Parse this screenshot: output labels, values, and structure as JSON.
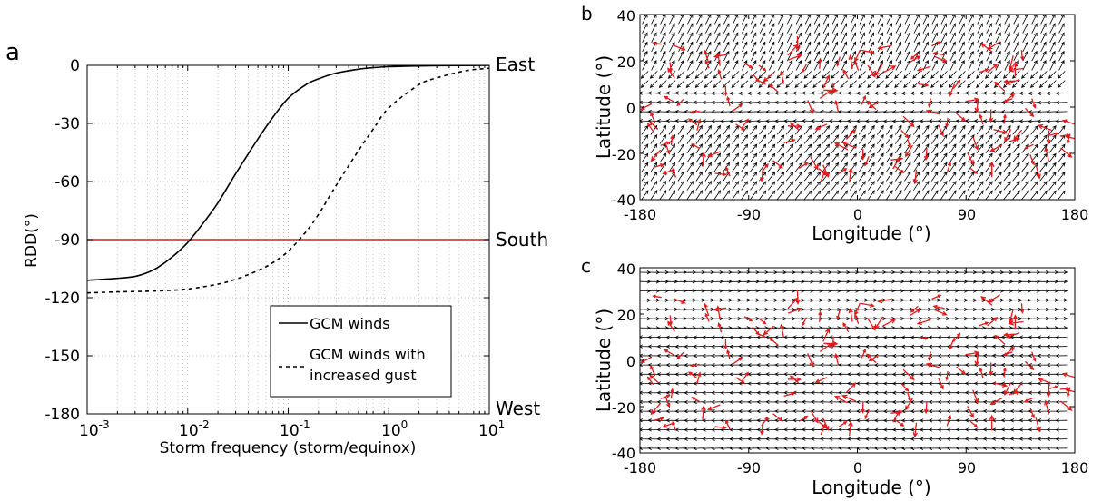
{
  "chart_data": [
    {
      "panel": "a",
      "type": "line",
      "xlabel": "Storm frequency (storm/equinox)",
      "ylabel": "RDD(°)",
      "xscale": "log",
      "xlim": [
        0.001,
        10
      ],
      "ylim": [
        -180,
        0
      ],
      "x_ticks": [
        {
          "value": 0.001,
          "base": "10",
          "exp": "-3"
        },
        {
          "value": 0.01,
          "base": "10",
          "exp": "-2"
        },
        {
          "value": 0.1,
          "base": "10",
          "exp": "-1"
        },
        {
          "value": 1,
          "base": "10",
          "exp": "0"
        },
        {
          "value": 10,
          "base": "10",
          "exp": "1"
        }
      ],
      "y_ticks": [
        0,
        -30,
        -60,
        -90,
        -120,
        -150,
        -180
      ],
      "right_labels": [
        {
          "value": 0,
          "text": "East"
        },
        {
          "value": -90,
          "text": "South"
        },
        {
          "value": -180,
          "text": "West"
        }
      ],
      "grid": true,
      "legend_position": "lower-right",
      "series": [
        {
          "name": "GCM winds",
          "style": "solid",
          "color": "#000000",
          "x": [
            0.001,
            0.002,
            0.003,
            0.004,
            0.005,
            0.007,
            0.01,
            0.015,
            0.02,
            0.03,
            0.05,
            0.07,
            0.1,
            0.15,
            0.2,
            0.3,
            0.5,
            0.7,
            1,
            2,
            5,
            10
          ],
          "y": [
            -111,
            -110,
            -109,
            -107,
            -104.5,
            -99,
            -91.5,
            -80,
            -71,
            -56,
            -38,
            -27,
            -17,
            -10,
            -7,
            -4,
            -2,
            -1.2,
            -0.7,
            -0.3,
            -0.1,
            0
          ]
        },
        {
          "name": "GCM winds with increased gust",
          "style": "dashed",
          "color": "#000000",
          "x": [
            0.001,
            0.002,
            0.005,
            0.01,
            0.02,
            0.03,
            0.05,
            0.07,
            0.1,
            0.15,
            0.2,
            0.3,
            0.5,
            0.7,
            1,
            2,
            3,
            5,
            7,
            10
          ],
          "y": [
            -117.5,
            -117,
            -116.5,
            -115.5,
            -113,
            -110.5,
            -106,
            -102,
            -96,
            -86,
            -77,
            -62,
            -44,
            -33,
            -22,
            -10,
            -6.5,
            -3.5,
            -2.2,
            -1.5
          ]
        },
        {
          "name": "",
          "style": "solid",
          "color": "#e41a1c",
          "x": [
            0.001,
            10
          ],
          "y": [
            -90,
            -90
          ]
        }
      ]
    },
    {
      "panel": "b",
      "type": "quiver",
      "xlabel": "Longitude (°)",
      "ylabel": "Latitude (°)",
      "xlim": [
        -180,
        180
      ],
      "ylim": [
        -40,
        40
      ],
      "x_ticks": [
        -180,
        -90,
        0,
        90,
        180
      ],
      "y_ticks": [
        40,
        20,
        0,
        -20,
        -40
      ],
      "background_field": "wind vectors (black); southern hemisphere and northern mid-latitudes point north-east/south-west, near-equatorial band points west",
      "storm_field": "red arrows scattered between 30°S and 30°N"
    },
    {
      "panel": "c",
      "type": "quiver",
      "xlabel": "Longitude (°)",
      "ylabel": "Latitude (°)",
      "xlim": [
        -180,
        180
      ],
      "ylim": [
        -40,
        40
      ],
      "x_ticks": [
        -180,
        -90,
        0,
        90,
        180
      ],
      "y_ticks": [
        40,
        20,
        0,
        -20,
        -40
      ],
      "background_field": "wind vectors (black); north of 10°N point east, south of 10°N point west",
      "storm_field": "red arrows scattered between 30°S and 30°N"
    }
  ],
  "legend": {
    "solid_label": "GCM winds",
    "dashed_label_line1": "GCM winds with",
    "dashed_label_line2": "increased gust"
  },
  "colors": {
    "red": "#e41a1c",
    "black": "#000000",
    "grid": "#b4b4b4"
  }
}
